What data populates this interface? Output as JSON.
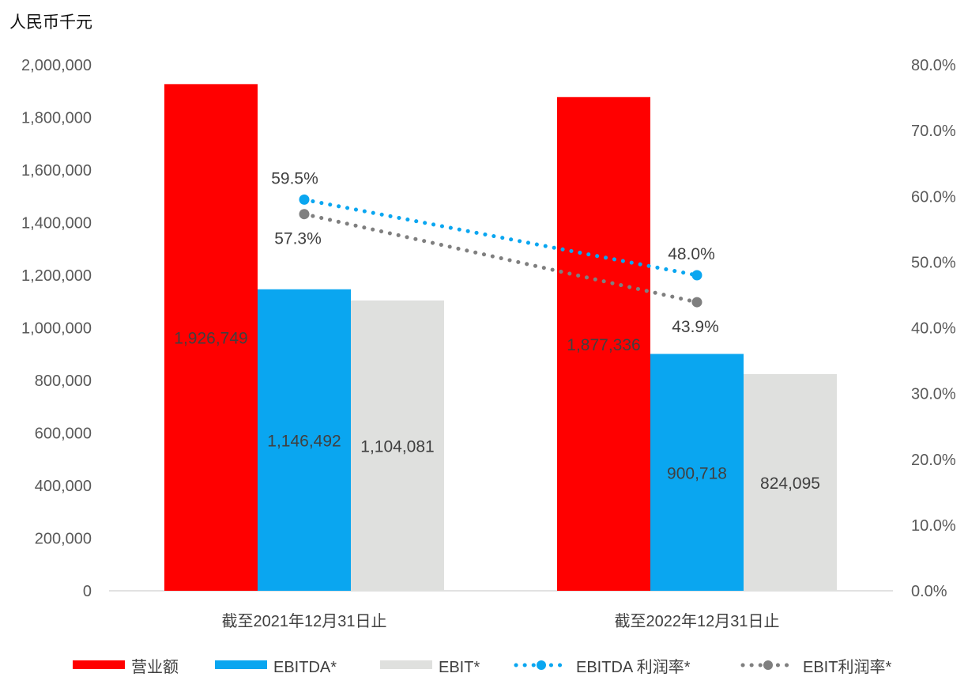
{
  "chart_data": {
    "type": "bar",
    "unit_label": "人民币千元",
    "categories": [
      "截至2021年12月31日止",
      "截至2022年12月31日止"
    ],
    "y_left": {
      "min": 0,
      "max": 2000000,
      "step": 200000,
      "tick_labels": [
        "0",
        "200,000",
        "400,000",
        "600,000",
        "800,000",
        "1,000,000",
        "1,200,000",
        "1,400,000",
        "1,600,000",
        "1,800,000",
        "2,000,000"
      ]
    },
    "y_right": {
      "min": 0,
      "max": 80,
      "step": 10,
      "tick_labels": [
        "0.0%",
        "10.0%",
        "20.0%",
        "30.0%",
        "40.0%",
        "50.0%",
        "60.0%",
        "70.0%",
        "80.0%"
      ]
    },
    "bar_series": [
      {
        "name": "营业额",
        "color": "#ff0000",
        "values": [
          1926749,
          1877336
        ],
        "labels": [
          "1,926,749",
          "1,877,336"
        ]
      },
      {
        "name": "EBITDA*",
        "color": "#0aa6f0",
        "values": [
          1146492,
          900718
        ],
        "labels": [
          "1,146,492",
          "900,718"
        ]
      },
      {
        "name": "EBIT*",
        "color": "#dfe0de",
        "values": [
          1104081,
          824095
        ],
        "labels": [
          "1,104,081",
          "824,095"
        ]
      }
    ],
    "line_series": [
      {
        "name": "EBITDA 利润率*",
        "color": "#0aa6f0",
        "values": [
          59.5,
          48.0
        ],
        "labels": [
          "59.5%",
          "48.0%"
        ]
      },
      {
        "name": "EBIT利润率*",
        "color": "#7f7f7f",
        "values": [
          57.3,
          43.9
        ],
        "labels": [
          "57.3%",
          "43.9%"
        ]
      }
    ],
    "legend_position": "bottom",
    "grid": false
  }
}
